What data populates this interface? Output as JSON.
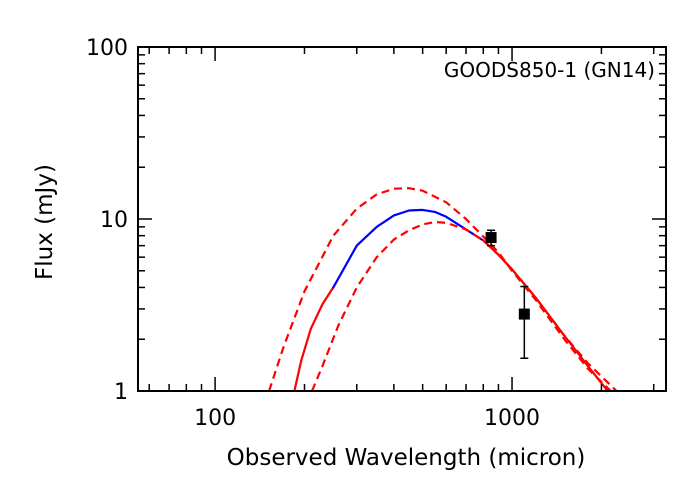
{
  "chart_data": {
    "type": "line",
    "title": "",
    "xlabel": "Observed Wavelength (micron)",
    "ylabel": "Flux (mJy)",
    "xscale": "log",
    "yscale": "log",
    "xlim": [
      55,
      3300
    ],
    "ylim": [
      1,
      100
    ],
    "grid": false,
    "annotation": "GOODS850-1 (GN14)",
    "x_ticks": [
      {
        "value": 100,
        "label": "100"
      },
      {
        "value": 1000,
        "label": "1000"
      }
    ],
    "y_ticks": [
      {
        "value": 1,
        "label": "1"
      },
      {
        "value": 10,
        "label": "10"
      },
      {
        "value": 100,
        "label": "100"
      }
    ],
    "colors": {
      "best_fit_constrained": "#0000ff",
      "best_fit_extrapolated": "#ff0000",
      "bounds": "#ff0000",
      "points": "#000000"
    },
    "series": [
      {
        "style": "solid",
        "segments": [
          {
            "color": "#ff0000",
            "x": [
              185,
              195,
              210,
              230,
              250
            ],
            "y": [
              1.0,
              1.5,
              2.3,
              3.2,
              4.0
            ]
          },
          {
            "color": "#0000ff",
            "x": [
              250,
              300,
              350,
              400,
              450,
              500,
              550,
              600,
              700,
              800
            ],
            "y": [
              4.0,
              7.0,
              9.0,
              10.5,
              11.2,
              11.3,
              11.0,
              10.3,
              8.7,
              7.5
            ]
          },
          {
            "color": "#ff0000",
            "x": [
              800,
              900,
              1000,
              1200,
              1500,
              1800,
              2100
            ],
            "y": [
              7.5,
              6.2,
              5.1,
              3.5,
              2.1,
              1.4,
              1.0
            ]
          }
        ]
      },
      {
        "style": "dashed",
        "color": "#ff0000",
        "x": [
          152,
          170,
          200,
          250,
          300,
          350,
          400,
          450,
          500,
          600,
          700,
          800,
          900,
          1000,
          1200,
          1500,
          1800,
          2150
        ],
        "y": [
          1.0,
          1.8,
          3.8,
          8.0,
          11.5,
          13.9,
          15.0,
          15.1,
          14.6,
          12.5,
          10.0,
          7.9,
          6.4,
          5.0,
          3.4,
          2.0,
          1.35,
          1.0
        ]
      },
      {
        "style": "dashed",
        "color": "#ff0000",
        "x": [
          212,
          230,
          260,
          300,
          350,
          400,
          450,
          500,
          550,
          600,
          700,
          800,
          900,
          1000,
          1200,
          1500,
          1800,
          2250
        ],
        "y": [
          1.0,
          1.4,
          2.4,
          4.0,
          6.0,
          7.6,
          8.6,
          9.3,
          9.6,
          9.5,
          8.7,
          7.5,
          6.2,
          5.1,
          3.5,
          2.1,
          1.45,
          1.0
        ]
      }
    ],
    "points": [
      {
        "x": 850,
        "y": 7.8,
        "yerr_low": 7.0,
        "yerr_high": 8.6
      },
      {
        "x": 1100,
        "y": 2.8,
        "yerr_low": 1.55,
        "yerr_high": 4.05
      }
    ]
  }
}
